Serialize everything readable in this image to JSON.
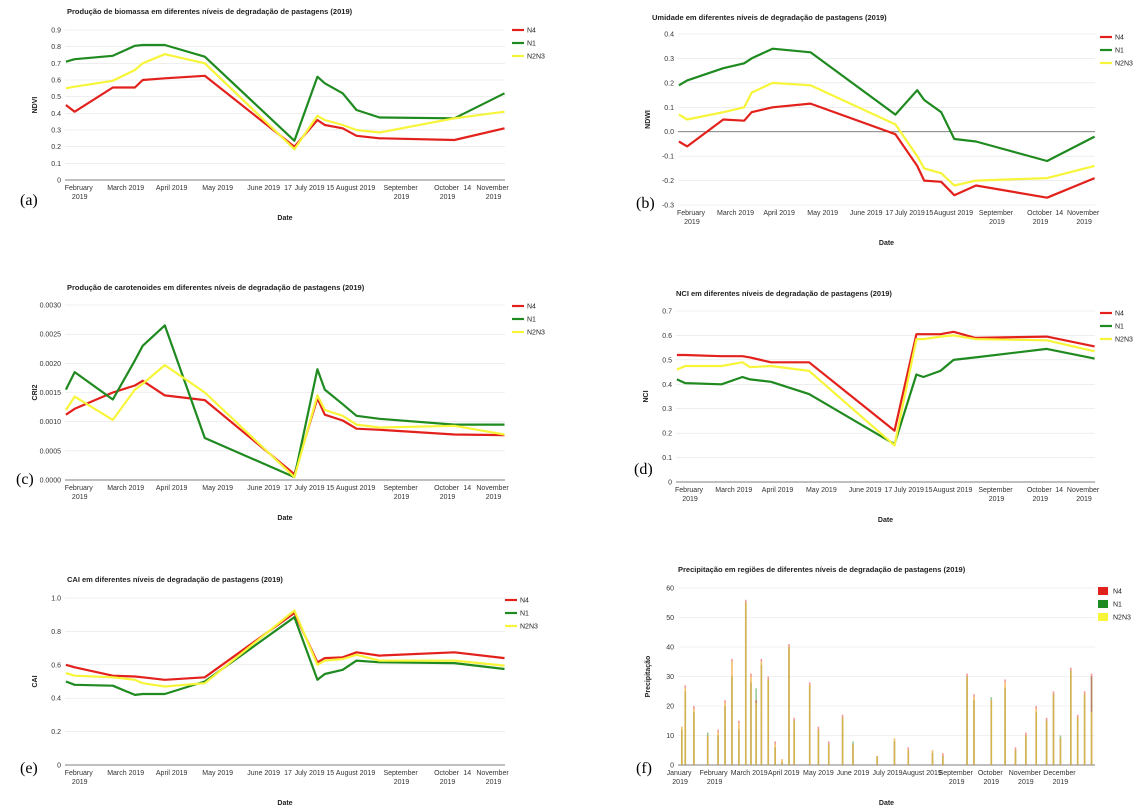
{
  "chart_data": [
    {
      "type": "line",
      "panel": "(a)",
      "title": "Produção de biomassa em diferentes níveis de degradação de pastagens (2019)",
      "xlabel": "Date",
      "ylabel": "NDVI",
      "grid": true,
      "legend": "right",
      "xlim": [
        1.68,
        11.25
      ],
      "xticks": [
        {
          "value": 2,
          "label": "February 2019"
        },
        {
          "value": 3,
          "label": "March 2019"
        },
        {
          "value": 4,
          "label": "April 2019"
        },
        {
          "value": 5,
          "label": "May 2019"
        },
        {
          "value": 6,
          "label": "June 2019"
        },
        {
          "value": 6.53,
          "label": "17"
        },
        {
          "value": 7,
          "label": "July 2019"
        },
        {
          "value": 7.45,
          "label": "15"
        },
        {
          "value": 8,
          "label": "August 2019"
        },
        {
          "value": 9,
          "label": "September 2019"
        },
        {
          "value": 10,
          "label": "October 2019"
        },
        {
          "value": 10.43,
          "label": "14"
        },
        {
          "value": 11,
          "label": "November 2019"
        }
      ],
      "ylim": [
        0,
        0.9
      ],
      "yticks": [
        0,
        0.1,
        0.2,
        0.3,
        0.4,
        0.5,
        0.6,
        0.7,
        0.8,
        0.9
      ],
      "x": [
        1.7,
        1.89,
        2.72,
        3.2,
        3.37,
        3.85,
        4.72,
        6.67,
        7.17,
        7.33,
        7.72,
        8.02,
        8.52,
        10.15,
        11.24
      ],
      "series": [
        {
          "name": "N4",
          "color": "#e3211c",
          "values": [
            0.45,
            0.41,
            0.555,
            0.555,
            0.6,
            0.61,
            0.625,
            0.2,
            0.36,
            0.33,
            0.31,
            0.265,
            0.25,
            0.24,
            0.31
          ]
        },
        {
          "name": "N1",
          "color": "#1f8a1f",
          "values": [
            0.71,
            0.725,
            0.745,
            0.805,
            0.81,
            0.81,
            0.74,
            0.235,
            0.62,
            0.58,
            0.52,
            0.42,
            0.375,
            0.37,
            0.52
          ]
        },
        {
          "name": "N2N3",
          "color": "#f7f53a",
          "values": [
            0.55,
            0.56,
            0.595,
            0.66,
            0.7,
            0.755,
            0.7,
            0.185,
            0.385,
            0.36,
            0.33,
            0.3,
            0.285,
            0.37,
            0.41
          ]
        }
      ]
    },
    {
      "type": "line",
      "panel": "(b)",
      "title": "Umidade em diferentes níveis de degradação de pastagens (2019)",
      "xlabel": "Date",
      "ylabel": "NDWI",
      "grid": true,
      "legend": "right",
      "xlim": [
        1.68,
        11.25
      ],
      "xticks": [
        {
          "value": 2,
          "label": "February 2019"
        },
        {
          "value": 3,
          "label": "March 2019"
        },
        {
          "value": 4,
          "label": "April 2019"
        },
        {
          "value": 5,
          "label": "May 2019"
        },
        {
          "value": 6,
          "label": "June 2019"
        },
        {
          "value": 6.53,
          "label": "17"
        },
        {
          "value": 7,
          "label": "July 2019"
        },
        {
          "value": 7.45,
          "label": "15"
        },
        {
          "value": 8,
          "label": "August 2019"
        },
        {
          "value": 9,
          "label": "September 2019"
        },
        {
          "value": 10,
          "label": "October 2019"
        },
        {
          "value": 10.43,
          "label": "14"
        },
        {
          "value": 11,
          "label": "November 2019"
        }
      ],
      "ylim": [
        -0.3,
        0.4
      ],
      "yticks": [
        -0.3,
        -0.2,
        -0.1,
        {
          "value": 0,
          "label": "0.0"
        },
        0.1,
        0.2,
        0.3,
        0.4
      ],
      "x": [
        1.7,
        1.89,
        2.72,
        3.2,
        3.37,
        3.85,
        4.72,
        6.67,
        7.17,
        7.33,
        7.72,
        8.02,
        8.52,
        10.15,
        11.24
      ],
      "series": [
        {
          "name": "N4",
          "color": "#e3211c",
          "values": [
            -0.04,
            -0.06,
            0.05,
            0.045,
            0.08,
            0.1,
            0.115,
            -0.01,
            -0.14,
            -0.2,
            -0.205,
            -0.26,
            -0.22,
            -0.27,
            -0.19
          ]
        },
        {
          "name": "N1",
          "color": "#1f8a1f",
          "values": [
            0.19,
            0.21,
            0.26,
            0.28,
            0.3,
            0.34,
            0.325,
            0.07,
            0.17,
            0.13,
            0.08,
            -0.03,
            -0.04,
            -0.12,
            -0.02
          ]
        },
        {
          "name": "N2N3",
          "color": "#f7f53a",
          "values": [
            0.07,
            0.05,
            0.08,
            0.1,
            0.16,
            0.2,
            0.19,
            0.03,
            -0.1,
            -0.15,
            -0.17,
            -0.22,
            -0.2,
            -0.19,
            -0.14
          ]
        }
      ]
    },
    {
      "type": "line",
      "panel": "(c)",
      "title": "Produção de carotenoides em diferentes níveis de degradação de pastagens (2019)",
      "xlabel": "Date",
      "ylabel": "CRI2",
      "grid": true,
      "legend": "right",
      "xlim": [
        1.68,
        11.25
      ],
      "xticks": [
        {
          "value": 2,
          "label": "February 2019"
        },
        {
          "value": 3,
          "label": "March 2019"
        },
        {
          "value": 4,
          "label": "April 2019"
        },
        {
          "value": 5,
          "label": "May 2019"
        },
        {
          "value": 6,
          "label": "June 2019"
        },
        {
          "value": 6.53,
          "label": "17"
        },
        {
          "value": 7,
          "label": "July 2019"
        },
        {
          "value": 7.45,
          "label": "15"
        },
        {
          "value": 8,
          "label": "August 2019"
        },
        {
          "value": 9,
          "label": "September 2019"
        },
        {
          "value": 10,
          "label": "October 2019"
        },
        {
          "value": 10.43,
          "label": "14"
        },
        {
          "value": 11,
          "label": "November 2019"
        }
      ],
      "ylim": [
        0,
        0.003
      ],
      "yticks": [
        {
          "value": 0,
          "label": "0.0000"
        },
        {
          "value": 0.0005,
          "label": "0.0005"
        },
        {
          "value": 0.001,
          "label": "0.0010"
        },
        {
          "value": 0.0015,
          "label": "0.0015"
        },
        {
          "value": 0.002,
          "label": "0.0020"
        },
        {
          "value": 0.0025,
          "label": "0.0025"
        },
        {
          "value": 0.003,
          "label": "0.0030"
        }
      ],
      "x": [
        1.7,
        1.89,
        2.72,
        3.2,
        3.37,
        3.85,
        4.72,
        6.67,
        7.17,
        7.33,
        7.72,
        8.02,
        8.52,
        10.15,
        11.24
      ],
      "series": [
        {
          "name": "N4",
          "color": "#e3211c",
          "values": [
            0.00112,
            0.00122,
            0.0015,
            0.00162,
            0.0017,
            0.00145,
            0.00137,
            0.0001,
            0.0014,
            0.00112,
            0.00102,
            0.00088,
            0.00086,
            0.00078,
            0.00077
          ]
        },
        {
          "name": "N1",
          "color": "#1f8a1f",
          "values": [
            0.00155,
            0.00185,
            0.00138,
            0.00205,
            0.0023,
            0.00265,
            0.00072,
            5e-05,
            0.0019,
            0.00155,
            0.0013,
            0.0011,
            0.00105,
            0.00095,
            0.00095
          ]
        },
        {
          "name": "N2N3",
          "color": "#f7f53a",
          "values": [
            0.0012,
            0.00143,
            0.00103,
            0.00155,
            0.00165,
            0.00197,
            0.0015,
            5e-05,
            0.00145,
            0.0012,
            0.0011,
            0.00095,
            0.0009,
            0.00093,
            0.00078
          ]
        }
      ]
    },
    {
      "type": "line",
      "panel": "(d)",
      "title": "NCI em diferentes níveis de degradação de pastagens (2019)",
      "xlabel": "Date",
      "ylabel": "NCI",
      "grid": true,
      "legend": "right",
      "xlim": [
        1.68,
        11.25
      ],
      "xticks": [
        {
          "value": 2,
          "label": "February 2019"
        },
        {
          "value": 3,
          "label": "March 2019"
        },
        {
          "value": 4,
          "label": "April 2019"
        },
        {
          "value": 5,
          "label": "May 2019"
        },
        {
          "value": 6,
          "label": "June 2019"
        },
        {
          "value": 6.53,
          "label": "17"
        },
        {
          "value": 7,
          "label": "July 2019"
        },
        {
          "value": 7.45,
          "label": "15"
        },
        {
          "value": 8,
          "label": "August 2019"
        },
        {
          "value": 9,
          "label": "September 2019"
        },
        {
          "value": 10,
          "label": "October 2019"
        },
        {
          "value": 10.43,
          "label": "14"
        },
        {
          "value": 11,
          "label": "November 2019"
        }
      ],
      "ylim": [
        0,
        0.7
      ],
      "yticks": [
        0,
        0.1,
        0.2,
        0.3,
        0.4,
        0.5,
        0.6,
        0.7
      ],
      "x": [
        1.7,
        1.89,
        2.72,
        3.2,
        3.37,
        3.85,
        4.72,
        6.67,
        7.17,
        7.33,
        7.72,
        8.02,
        8.52,
        10.15,
        11.24
      ],
      "series": [
        {
          "name": "N4",
          "color": "#e3211c",
          "values": [
            0.52,
            0.52,
            0.515,
            0.515,
            0.51,
            0.49,
            0.49,
            0.21,
            0.605,
            0.605,
            0.605,
            0.615,
            0.59,
            0.595,
            0.555
          ]
        },
        {
          "name": "N1",
          "color": "#1f8a1f",
          "values": [
            0.42,
            0.405,
            0.4,
            0.43,
            0.42,
            0.41,
            0.36,
            0.155,
            0.44,
            0.43,
            0.455,
            0.5,
            0.51,
            0.545,
            0.505
          ]
        },
        {
          "name": "N2N3",
          "color": "#f7f53a",
          "values": [
            0.46,
            0.475,
            0.475,
            0.49,
            0.47,
            0.475,
            0.455,
            0.15,
            0.585,
            0.585,
            0.595,
            0.6,
            0.585,
            0.58,
            0.535
          ]
        }
      ]
    },
    {
      "type": "line",
      "panel": "(e)",
      "title": "CAI em diferentes níveis de degradação de pastagens (2019)",
      "xlabel": "Date",
      "ylabel": "CAI",
      "grid": true,
      "legend": "right",
      "xlim": [
        1.68,
        11.25
      ],
      "xticks": [
        {
          "value": 2,
          "label": "February 2019"
        },
        {
          "value": 3,
          "label": "March 2019"
        },
        {
          "value": 4,
          "label": "April 2019"
        },
        {
          "value": 5,
          "label": "May 2019"
        },
        {
          "value": 6,
          "label": "June 2019"
        },
        {
          "value": 6.53,
          "label": "17"
        },
        {
          "value": 7,
          "label": "July 2019"
        },
        {
          "value": 7.45,
          "label": "15"
        },
        {
          "value": 8,
          "label": "August 2019"
        },
        {
          "value": 9,
          "label": "September 2019"
        },
        {
          "value": 10,
          "label": "October 2019"
        },
        {
          "value": 10.43,
          "label": "14"
        },
        {
          "value": 11,
          "label": "November 2019"
        }
      ],
      "ylim": [
        0,
        1.0
      ],
      "yticks": [
        0,
        0.2,
        0.4,
        0.6,
        0.8,
        {
          "value": 1.0,
          "label": "1.0"
        }
      ],
      "x": [
        1.7,
        1.89,
        2.72,
        3.2,
        3.37,
        3.85,
        4.72,
        6.67,
        7.17,
        7.33,
        7.72,
        8.02,
        8.52,
        10.15,
        11.24
      ],
      "series": [
        {
          "name": "N4",
          "color": "#e3211c",
          "values": [
            0.6,
            0.585,
            0.535,
            0.53,
            0.525,
            0.51,
            0.525,
            0.91,
            0.615,
            0.64,
            0.645,
            0.675,
            0.655,
            0.675,
            0.64
          ]
        },
        {
          "name": "N1",
          "color": "#1f8a1f",
          "values": [
            0.5,
            0.48,
            0.475,
            0.42,
            0.425,
            0.425,
            0.5,
            0.885,
            0.51,
            0.545,
            0.57,
            0.625,
            0.615,
            0.61,
            0.575
          ]
        },
        {
          "name": "N2N3",
          "color": "#f7f53a",
          "values": [
            0.55,
            0.535,
            0.525,
            0.51,
            0.49,
            0.47,
            0.49,
            0.925,
            0.6,
            0.625,
            0.635,
            0.66,
            0.625,
            0.625,
            0.595
          ]
        }
      ]
    },
    {
      "type": "bar",
      "panel": "(f)",
      "title": "Precipitação em regiões de diferentes níveis de degradação de pastagens (2019)",
      "xlabel": "Date",
      "ylabel": "Precipitação",
      "grid": true,
      "legend": "right",
      "xlim": [
        0.94,
        13.0
      ],
      "xticks": [
        {
          "value": 1,
          "label": "January 2019"
        },
        {
          "value": 2,
          "label": "February 2019"
        },
        {
          "value": 3,
          "label": "March 2019"
        },
        {
          "value": 4,
          "label": "April 2019"
        },
        {
          "value": 5,
          "label": "May 2019"
        },
        {
          "value": 6,
          "label": "June 2019"
        },
        {
          "value": 7,
          "label": "July 2019"
        },
        {
          "value": 8,
          "label": "August 2019"
        },
        {
          "value": 9,
          "label": "September 2019"
        },
        {
          "value": 10,
          "label": "October 2019"
        },
        {
          "value": 11,
          "label": "November 2019"
        },
        {
          "value": 12,
          "label": "December 2019"
        }
      ],
      "ylim": [
        0,
        60
      ],
      "yticks": [
        0,
        10,
        20,
        30,
        40,
        50,
        60
      ],
      "x": [
        1.05,
        1.15,
        1.4,
        1.8,
        2.1,
        2.3,
        2.5,
        2.7,
        2.9,
        3.05,
        3.2,
        3.35,
        3.55,
        3.75,
        3.95,
        4.15,
        4.3,
        4.75,
        5.0,
        5.3,
        5.7,
        6.0,
        6.7,
        7.2,
        7.6,
        8.3,
        8.6,
        9.3,
        9.5,
        10.0,
        10.4,
        10.7,
        11.0,
        11.3,
        11.6,
        11.8,
        12.0,
        12.3,
        12.5,
        12.7,
        12.9
      ],
      "series": [
        {
          "name": "N4",
          "color": "#e3211c",
          "values": [
            13,
            27,
            20,
            10,
            12,
            22,
            36,
            15,
            56,
            31,
            22,
            36,
            30,
            8,
            2,
            41,
            16,
            28,
            13,
            8,
            17,
            7,
            3,
            9,
            6,
            5,
            4,
            31,
            24,
            22,
            29,
            6,
            11,
            20,
            16,
            25,
            9,
            33,
            17,
            25,
            31
          ]
        },
        {
          "name": "N1",
          "color": "#1f8a1f",
          "values": [
            12,
            25,
            18,
            11,
            10,
            20,
            30,
            12,
            55,
            28,
            26,
            34,
            29,
            6,
            1,
            40,
            15,
            27,
            12,
            7,
            16,
            8,
            3,
            8,
            5,
            4,
            3,
            30,
            22,
            23,
            26,
            5,
            10,
            18,
            15,
            24,
            10,
            32,
            16,
            24,
            30
          ]
        },
        {
          "name": "N2N3",
          "color": "#f7f53a",
          "values": [
            13,
            26,
            19,
            10,
            11,
            21,
            35,
            14,
            55,
            30,
            21,
            35,
            29,
            7,
            2,
            40,
            15,
            27,
            12,
            7,
            16,
            7,
            3,
            9,
            5,
            5,
            3,
            30,
            23,
            22,
            28,
            5,
            10,
            19,
            15,
            24,
            9,
            32,
            16,
            24,
            18
          ]
        }
      ]
    }
  ]
}
